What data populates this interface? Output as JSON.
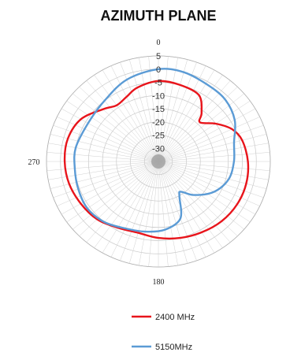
{
  "chart_data": {
    "type": "polar-line",
    "title": "AZIMUTH PLANE",
    "angle_labels": [
      {
        "angle": 0,
        "text": "0"
      },
      {
        "angle": 90,
        "text": ""
      },
      {
        "angle": 180,
        "text": "180"
      },
      {
        "angle": 270,
        "text": "270"
      }
    ],
    "r_ticks": [
      "5",
      "0",
      "-5",
      "-10",
      "-15",
      "-20",
      "-25",
      "-30"
    ],
    "r_tick_values": [
      5,
      0,
      -5,
      -10,
      -15,
      -20,
      -25,
      -30
    ],
    "rlim": [
      -35,
      5
    ],
    "grid": true,
    "legend_position": "bottom",
    "series": [
      {
        "name": "2400 MHz",
        "color": "#e8141b",
        "points": [
          [
            0,
            -4.5
          ],
          [
            15,
            -5
          ],
          [
            30,
            -6
          ],
          [
            40,
            -11
          ],
          [
            45,
            -14
          ],
          [
            55,
            -10
          ],
          [
            65,
            -6
          ],
          [
            75,
            -4
          ],
          [
            90,
            -3
          ],
          [
            105,
            -2.5
          ],
          [
            120,
            -2.5
          ],
          [
            135,
            -3
          ],
          [
            150,
            -4
          ],
          [
            165,
            -5
          ],
          [
            180,
            -6
          ],
          [
            195,
            -7
          ],
          [
            210,
            -6
          ],
          [
            225,
            -4
          ],
          [
            240,
            -3
          ],
          [
            255,
            -2
          ],
          [
            270,
            -1.5
          ],
          [
            285,
            -1.5
          ],
          [
            300,
            -3
          ],
          [
            315,
            -7
          ],
          [
            325,
            -9
          ],
          [
            335,
            -8
          ],
          [
            345,
            -6
          ],
          [
            360,
            -4.5
          ]
        ]
      },
      {
        "name": "5150MHz",
        "color": "#5b9bd5",
        "points": [
          [
            0,
            0
          ],
          [
            15,
            0
          ],
          [
            30,
            -1
          ],
          [
            45,
            -1.5
          ],
          [
            60,
            -3.5
          ],
          [
            75,
            -7
          ],
          [
            90,
            -8
          ],
          [
            105,
            -9
          ],
          [
            120,
            -12
          ],
          [
            135,
            -17
          ],
          [
            145,
            -21
          ],
          [
            150,
            -20
          ],
          [
            160,
            -12
          ],
          [
            175,
            -9
          ],
          [
            190,
            -8
          ],
          [
            205,
            -7
          ],
          [
            220,
            -5
          ],
          [
            235,
            -4
          ],
          [
            250,
            -4.5
          ],
          [
            265,
            -5
          ],
          [
            280,
            -5
          ],
          [
            300,
            -6
          ],
          [
            320,
            -5
          ],
          [
            340,
            -2
          ],
          [
            360,
            0
          ]
        ]
      }
    ]
  }
}
